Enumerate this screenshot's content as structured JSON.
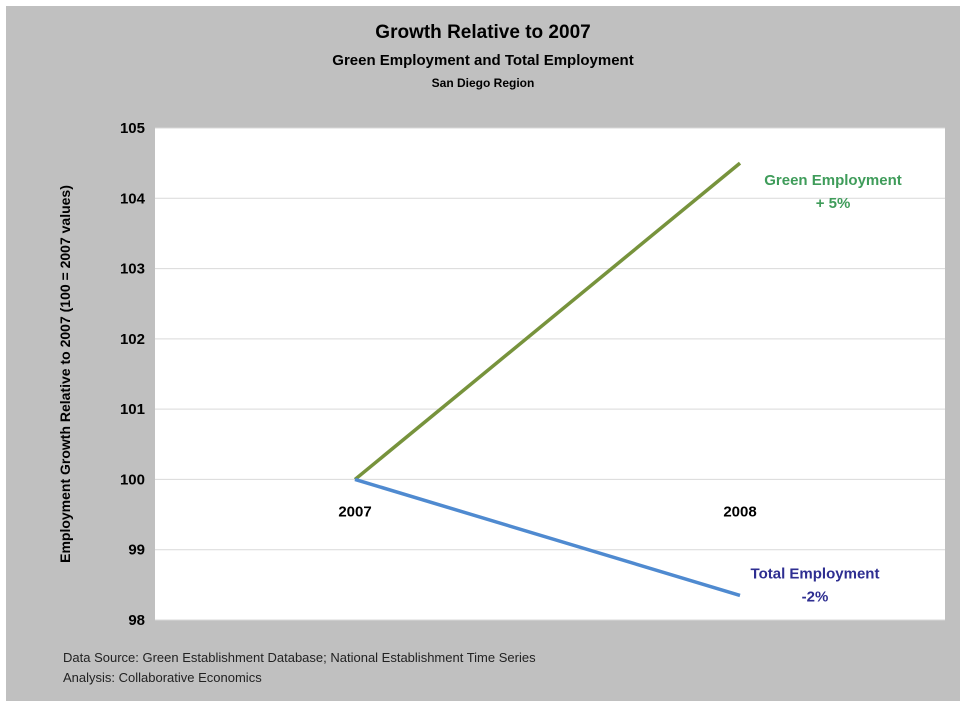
{
  "chart_data": {
    "type": "line",
    "title": "Growth Relative to 2007",
    "subtitle": "Green Employment and Total Employment",
    "subsubtitle": "San Diego Region",
    "ylabel": "Employment Growth Relative to 2007 (100 = 2007 values)",
    "xlabel": "",
    "categories": [
      "2007",
      "2008"
    ],
    "ylim": [
      98,
      105
    ],
    "yticks": [
      "98",
      "99",
      "100",
      "101",
      "102",
      "103",
      "104",
      "105"
    ],
    "grid": true,
    "series": [
      {
        "name": "Green Employment",
        "values": [
          100,
          104.5
        ],
        "color": "#77933c",
        "label_line1": "Green Employment",
        "label_line2": "+ 5%"
      },
      {
        "name": "Total Employment",
        "values": [
          100,
          98.35
        ],
        "color": "#4f8ad0",
        "label_line1": "Total Employment",
        "label_line2": "-2%"
      }
    ]
  },
  "footer": {
    "source": "Data Source: Green Establishment Database; National Establishment Time Series",
    "analysis": "Analysis: Collaborative Economics"
  },
  "colors": {
    "background": "#c0c0c0",
    "plot_area": "#ffffff",
    "green_label": "#3f9c5a",
    "blue_label": "#2e2e91"
  }
}
